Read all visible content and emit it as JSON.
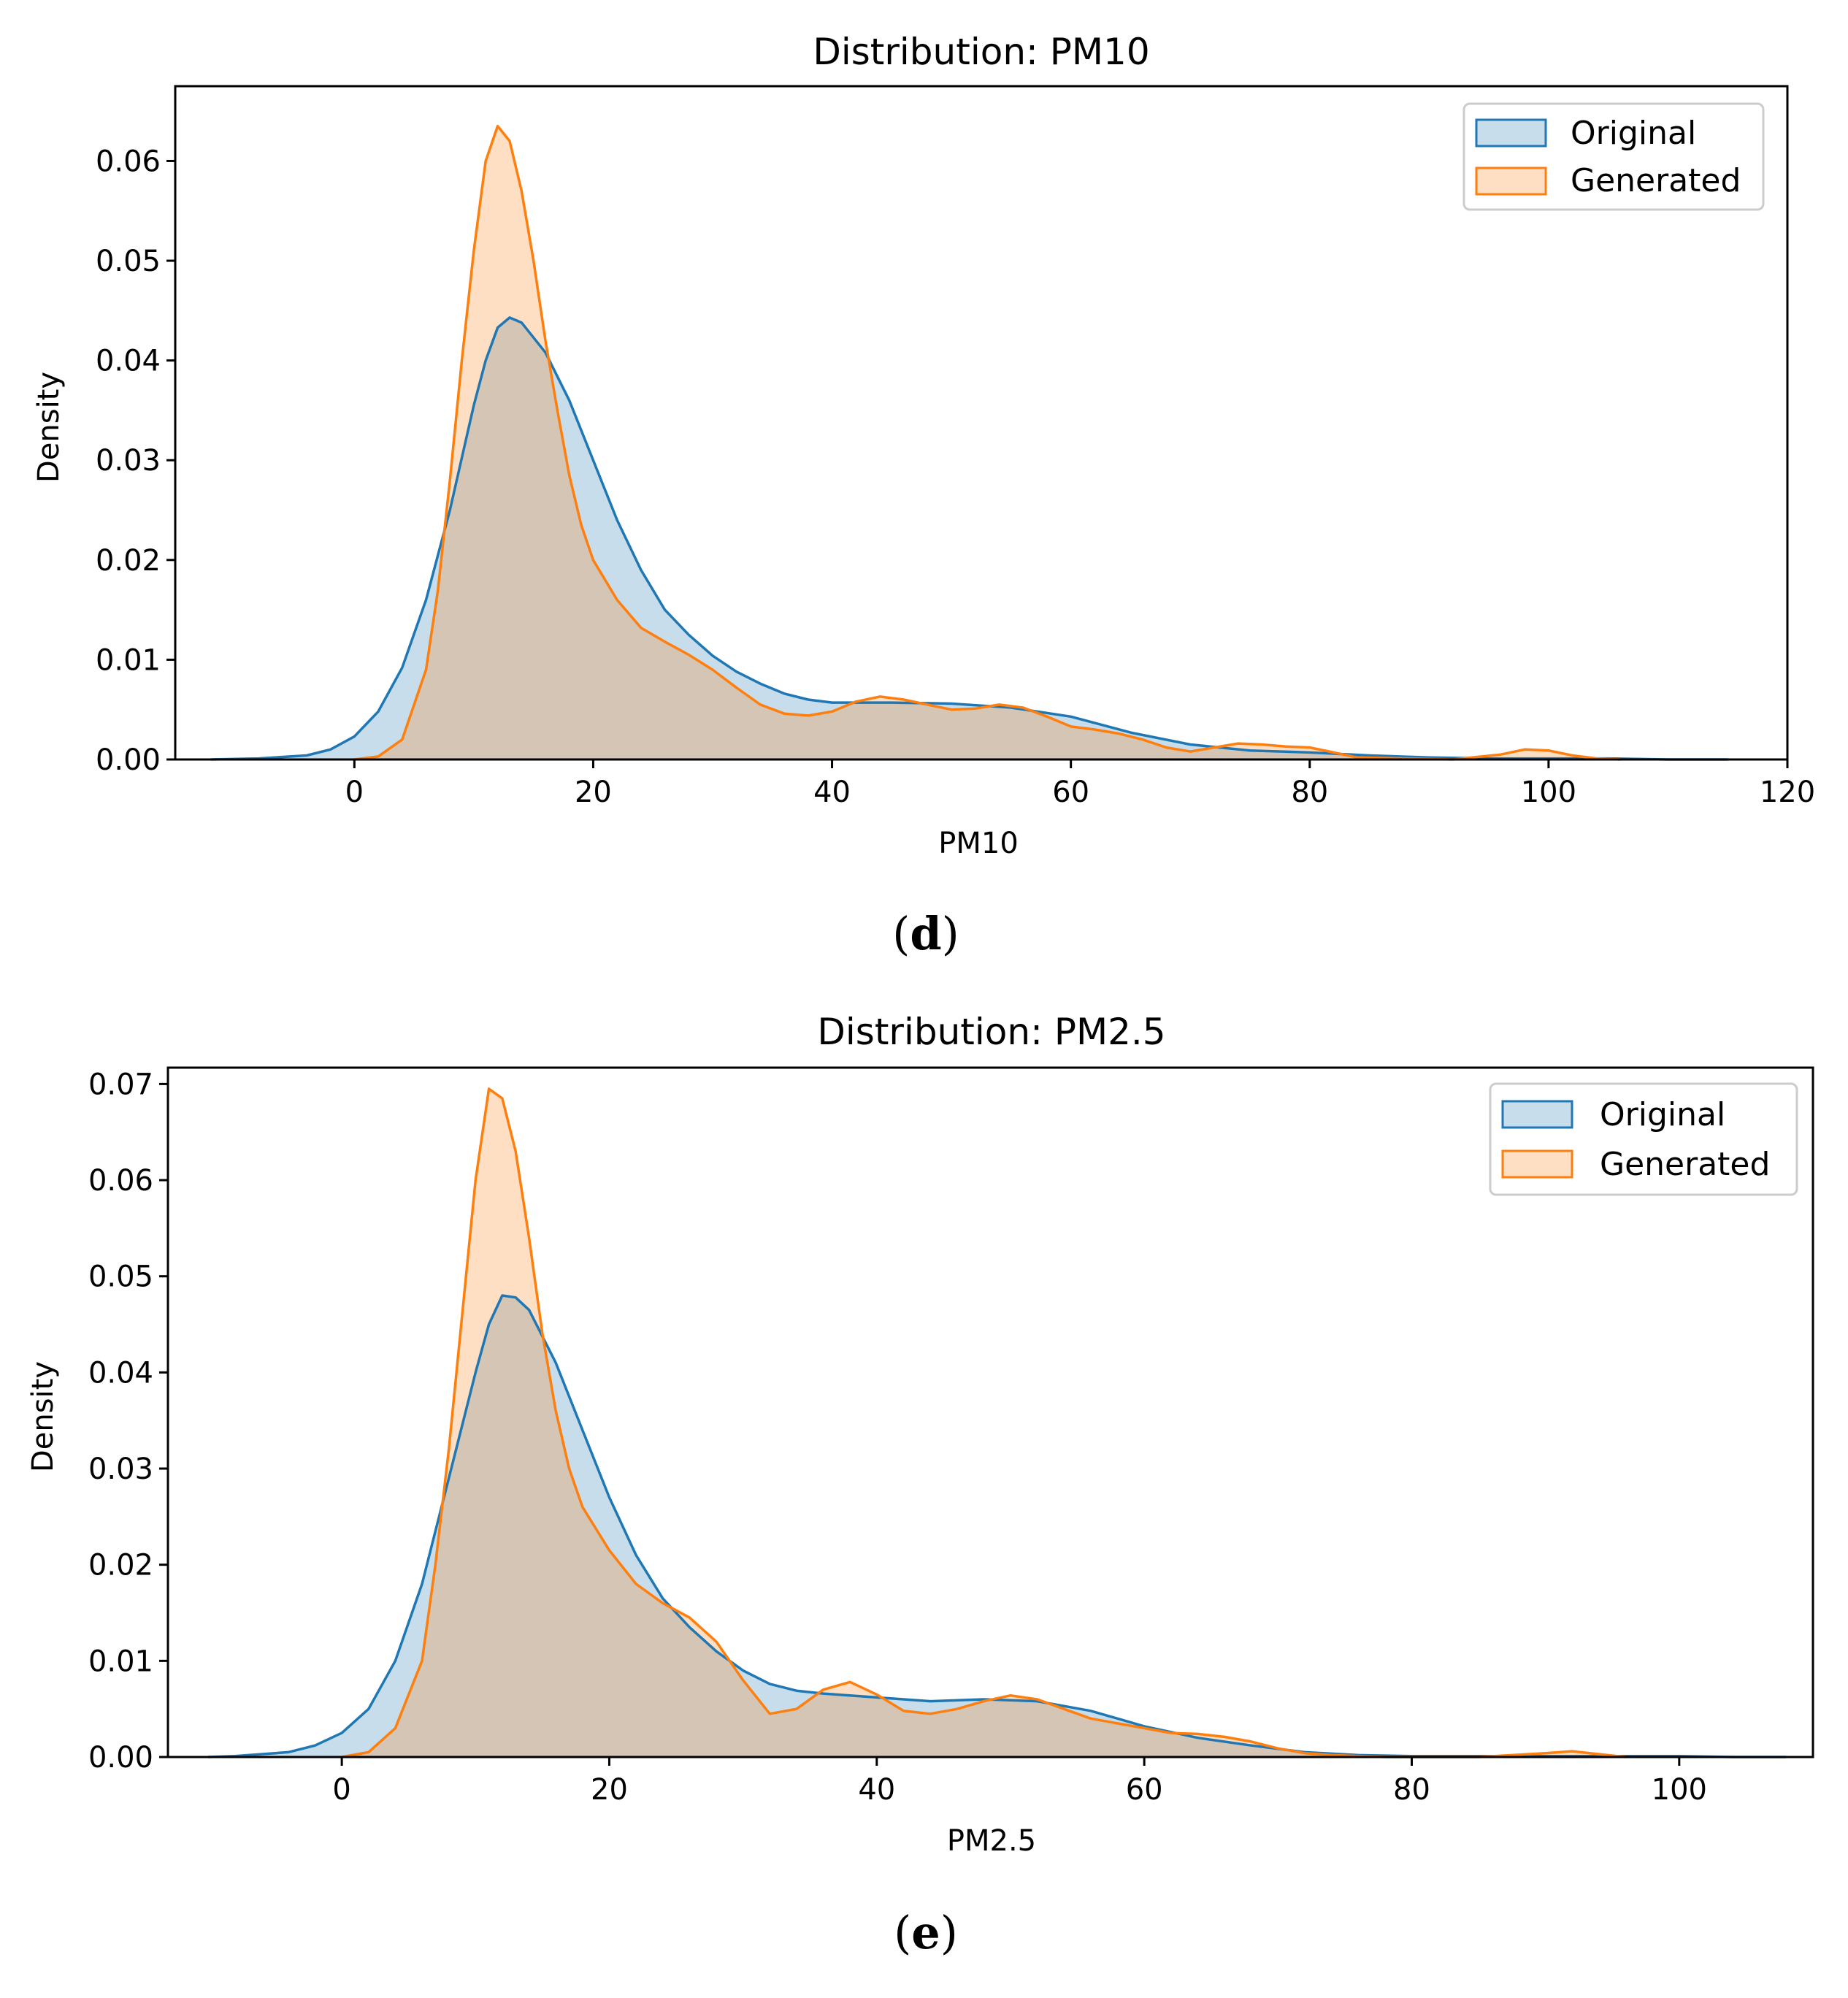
{
  "chart_data": [
    {
      "type": "area",
      "title": "Distribution: PM10",
      "xlabel": "PM10",
      "ylabel": "Density",
      "xlim": [
        -15,
        120
      ],
      "ylim": [
        0,
        0.0675
      ],
      "xticks": [
        0,
        20,
        40,
        60,
        80,
        100,
        120
      ],
      "xtick_labels": [
        "0",
        "20",
        "40",
        "60",
        "80",
        "100",
        "120"
      ],
      "yticks": [
        0,
        0.01,
        0.02,
        0.03,
        0.04,
        0.05,
        0.06
      ],
      "ytick_labels": [
        "0.00",
        "0.01",
        "0.02",
        "0.03",
        "0.04",
        "0.05",
        "0.06"
      ],
      "legend_position": "top-right",
      "caption": {
        "open": "(",
        "letter": "d",
        "close": ")"
      },
      "series": [
        {
          "name": "Original",
          "color": "#1f77b4",
          "points": [
            [
              -12,
              0
            ],
            [
              -8,
              0.0001
            ],
            [
              -4,
              0.0004
            ],
            [
              -2,
              0.001
            ],
            [
              0,
              0.0023
            ],
            [
              2,
              0.0048
            ],
            [
              4,
              0.0092
            ],
            [
              6,
              0.016
            ],
            [
              8,
              0.025
            ],
            [
              10,
              0.0355
            ],
            [
              11,
              0.04
            ],
            [
              12,
              0.0433
            ],
            [
              13,
              0.0443
            ],
            [
              14,
              0.0438
            ],
            [
              16,
              0.0408
            ],
            [
              18,
              0.036
            ],
            [
              20,
              0.03
            ],
            [
              22,
              0.024
            ],
            [
              24,
              0.019
            ],
            [
              26,
              0.015
            ],
            [
              28,
              0.0125
            ],
            [
              30,
              0.0104
            ],
            [
              32,
              0.0088
            ],
            [
              34,
              0.0076
            ],
            [
              36,
              0.0066
            ],
            [
              38,
              0.006
            ],
            [
              40,
              0.0057
            ],
            [
              45,
              0.0057
            ],
            [
              50,
              0.0056
            ],
            [
              55,
              0.0052
            ],
            [
              60,
              0.0043
            ],
            [
              65,
              0.0027
            ],
            [
              70,
              0.0015
            ],
            [
              75,
              0.0009
            ],
            [
              80,
              0.0007
            ],
            [
              85,
              0.0004
            ],
            [
              90,
              0.0002
            ],
            [
              95,
              0.0001
            ],
            [
              100,
              0.0001
            ],
            [
              105,
              0.0001
            ],
            [
              110,
              0
            ],
            [
              115,
              0
            ]
          ]
        },
        {
          "name": "Generated",
          "color": "#ff7f0e",
          "points": [
            [
              0,
              0
            ],
            [
              2,
              0.0003
            ],
            [
              4,
              0.002
            ],
            [
              6,
              0.009
            ],
            [
              7,
              0.017
            ],
            [
              8,
              0.028
            ],
            [
              9,
              0.04
            ],
            [
              10,
              0.051
            ],
            [
              11,
              0.06
            ],
            [
              12,
              0.0635
            ],
            [
              13,
              0.062
            ],
            [
              14,
              0.057
            ],
            [
              15,
              0.05
            ],
            [
              16,
              0.042
            ],
            [
              17,
              0.035
            ],
            [
              18,
              0.0285
            ],
            [
              19,
              0.0235
            ],
            [
              20,
              0.02
            ],
            [
              22,
              0.016
            ],
            [
              24,
              0.0132
            ],
            [
              26,
              0.0118
            ],
            [
              28,
              0.0105
            ],
            [
              30,
              0.009
            ],
            [
              32,
              0.0072
            ],
            [
              34,
              0.0055
            ],
            [
              36,
              0.0046
            ],
            [
              38,
              0.0044
            ],
            [
              40,
              0.0048
            ],
            [
              42,
              0.0058
            ],
            [
              44,
              0.0063
            ],
            [
              46,
              0.006
            ],
            [
              48,
              0.0055
            ],
            [
              50,
              0.005
            ],
            [
              52,
              0.0051
            ],
            [
              54,
              0.0055
            ],
            [
              56,
              0.0052
            ],
            [
              58,
              0.0043
            ],
            [
              60,
              0.0033
            ],
            [
              62,
              0.003
            ],
            [
              64,
              0.0026
            ],
            [
              66,
              0.002
            ],
            [
              68,
              0.0012
            ],
            [
              70,
              0.0008
            ],
            [
              72,
              0.0012
            ],
            [
              74,
              0.0016
            ],
            [
              76,
              0.0015
            ],
            [
              78,
              0.0013
            ],
            [
              80,
              0.0012
            ],
            [
              82,
              0.0007
            ],
            [
              84,
              0.0002
            ],
            [
              88,
              0.0001
            ],
            [
              92,
              0
            ],
            [
              96,
              0.0005
            ],
            [
              98,
              0.001
            ],
            [
              100,
              0.0009
            ],
            [
              102,
              0.0004
            ],
            [
              104,
              0.0001
            ],
            [
              106,
              0
            ]
          ]
        }
      ]
    },
    {
      "type": "area",
      "title": "Distribution: PM2.5",
      "xlabel": "PM2.5",
      "ylabel": "Density",
      "xlim": [
        -13,
        110
      ],
      "ylim": [
        0,
        0.0717
      ],
      "xticks": [
        0,
        20,
        40,
        60,
        80,
        100
      ],
      "xtick_labels": [
        "0",
        "20",
        "40",
        "60",
        "80",
        "100"
      ],
      "yticks": [
        0,
        0.01,
        0.02,
        0.03,
        0.04,
        0.05,
        0.06,
        0.07
      ],
      "ytick_labels": [
        "0.00",
        "0.01",
        "0.02",
        "0.03",
        "0.04",
        "0.05",
        "0.06",
        "0.07"
      ],
      "legend_position": "top-right",
      "caption": {
        "open": "(",
        "letter": "e",
        "close": ")"
      },
      "series": [
        {
          "name": "Original",
          "color": "#1f77b4",
          "points": [
            [
              -10,
              0
            ],
            [
              -8,
              0.0001
            ],
            [
              -4,
              0.0005
            ],
            [
              -2,
              0.0012
            ],
            [
              0,
              0.0025
            ],
            [
              2,
              0.005
            ],
            [
              4,
              0.01
            ],
            [
              6,
              0.018
            ],
            [
              8,
              0.029
            ],
            [
              10,
              0.04
            ],
            [
              11,
              0.045
            ],
            [
              12,
              0.048
            ],
            [
              13,
              0.0478
            ],
            [
              14,
              0.0465
            ],
            [
              16,
              0.041
            ],
            [
              18,
              0.034
            ],
            [
              20,
              0.027
            ],
            [
              22,
              0.021
            ],
            [
              24,
              0.0165
            ],
            [
              26,
              0.0135
            ],
            [
              28,
              0.011
            ],
            [
              30,
              0.009
            ],
            [
              32,
              0.0076
            ],
            [
              34,
              0.0069
            ],
            [
              36,
              0.0066
            ],
            [
              38,
              0.0064
            ],
            [
              40,
              0.0062
            ],
            [
              44,
              0.0058
            ],
            [
              48,
              0.006
            ],
            [
              52,
              0.0058
            ],
            [
              56,
              0.0048
            ],
            [
              60,
              0.0032
            ],
            [
              64,
              0.002
            ],
            [
              68,
              0.0012
            ],
            [
              72,
              0.0005
            ],
            [
              76,
              0.0002
            ],
            [
              80,
              0.0001
            ],
            [
              90,
              0.0001
            ],
            [
              100,
              0.0001
            ],
            [
              104,
              0
            ],
            [
              108,
              0
            ]
          ]
        },
        {
          "name": "Generated",
          "color": "#ff7f0e",
          "points": [
            [
              0,
              0
            ],
            [
              2,
              0.0005
            ],
            [
              4,
              0.003
            ],
            [
              6,
              0.01
            ],
            [
              7,
              0.02
            ],
            [
              8,
              0.032
            ],
            [
              9,
              0.046
            ],
            [
              10,
              0.06
            ],
            [
              11,
              0.0695
            ],
            [
              12,
              0.0685
            ],
            [
              13,
              0.063
            ],
            [
              14,
              0.054
            ],
            [
              15,
              0.044
            ],
            [
              16,
              0.036
            ],
            [
              17,
              0.03
            ],
            [
              18,
              0.026
            ],
            [
              20,
              0.0215
            ],
            [
              22,
              0.018
            ],
            [
              24,
              0.016
            ],
            [
              26,
              0.0145
            ],
            [
              28,
              0.012
            ],
            [
              30,
              0.008
            ],
            [
              32,
              0.0045
            ],
            [
              34,
              0.005
            ],
            [
              36,
              0.007
            ],
            [
              38,
              0.0078
            ],
            [
              40,
              0.0065
            ],
            [
              42,
              0.0048
            ],
            [
              44,
              0.0045
            ],
            [
              46,
              0.005
            ],
            [
              48,
              0.0058
            ],
            [
              50,
              0.0064
            ],
            [
              52,
              0.006
            ],
            [
              54,
              0.005
            ],
            [
              56,
              0.004
            ],
            [
              58,
              0.0035
            ],
            [
              60,
              0.003
            ],
            [
              62,
              0.0025
            ],
            [
              64,
              0.0024
            ],
            [
              66,
              0.0021
            ],
            [
              68,
              0.0016
            ],
            [
              70,
              0.0009
            ],
            [
              72,
              0.0004
            ],
            [
              74,
              0.0002
            ],
            [
              78,
              0
            ],
            [
              85,
              0
            ],
            [
              90,
              0.0004
            ],
            [
              92,
              0.0006
            ],
            [
              94,
              0.0003
            ],
            [
              96,
              0
            ]
          ]
        }
      ]
    }
  ]
}
